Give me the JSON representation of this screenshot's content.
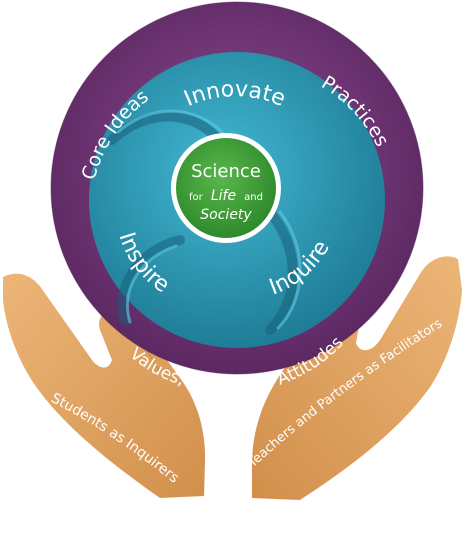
{
  "diagram": {
    "center": {
      "line1": "Science",
      "line2_prefix": "for",
      "line2_italic": "Life",
      "line2_suffix": "and",
      "line3_italic": "Society"
    },
    "inner_ring": {
      "top": "Innovate",
      "left": "Inspire",
      "right": "Inquire"
    },
    "outer_ring": {
      "left": "Core Ideas",
      "right": "Practices",
      "bottom": "Values, Ethics and Attitudes"
    },
    "hands": {
      "left": "Students as Inquirers",
      "right": "Teachers and Partners as Facilitators"
    }
  },
  "colors": {
    "outer_ring": "#7a3d7f",
    "outer_ring_dark": "#5a2760",
    "inner_teal_light": "#35a9c6",
    "inner_teal_dark": "#1a6f87",
    "center_green": "#46a83d",
    "center_green_dark": "#2d7f2a",
    "hand": "#e3a866",
    "hand_dark": "#cf8e4c",
    "text_light": "#ffffff"
  }
}
